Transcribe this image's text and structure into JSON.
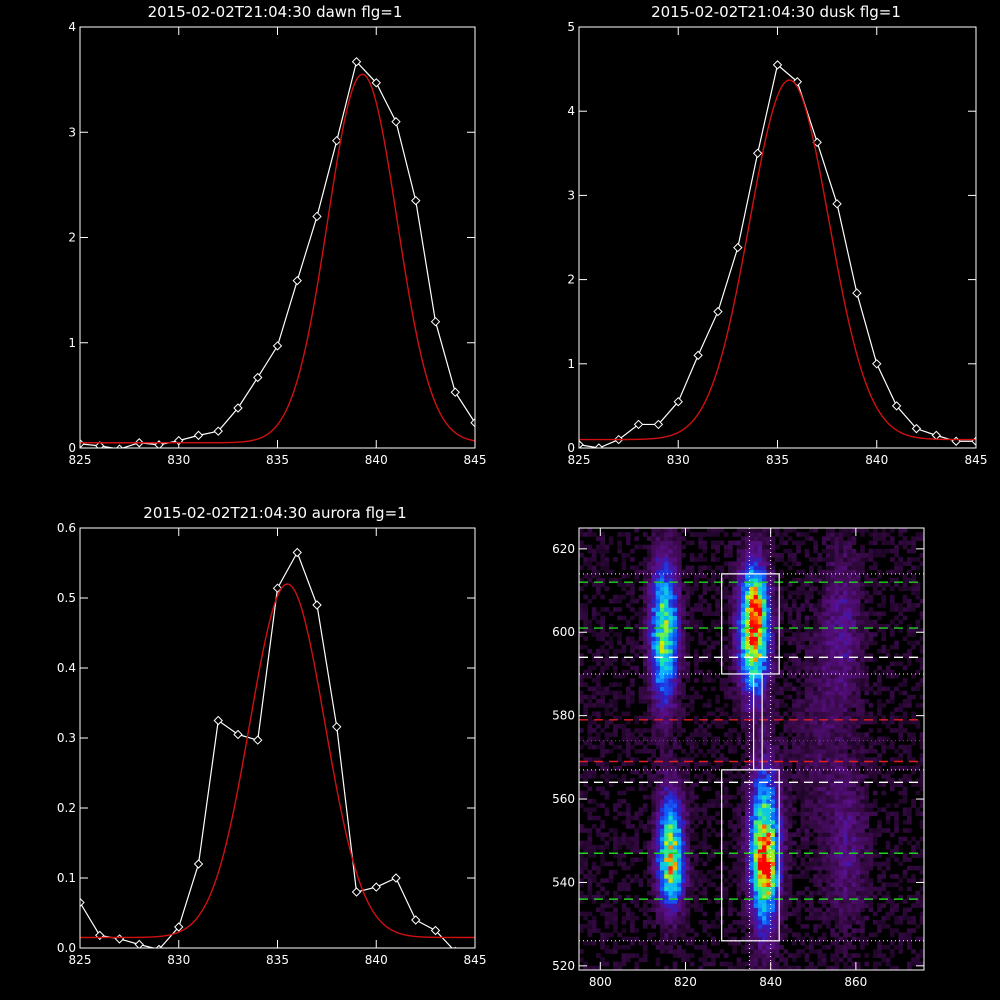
{
  "chart_data": [
    {
      "type": "line",
      "title": "2015-02-02T21:04:30 dawn flg=1",
      "xlim": [
        825,
        845
      ],
      "ylim": [
        0,
        4
      ],
      "xticks": [
        825,
        830,
        835,
        840,
        845
      ],
      "yticks": [
        0,
        1,
        2,
        3,
        4
      ],
      "xtick_labels": [
        "825",
        "830",
        "835",
        "840",
        "845"
      ],
      "ytick_labels": [
        "0",
        "1",
        "2",
        "3",
        "4"
      ],
      "grid": false,
      "series": [
        {
          "kind": "data",
          "color": "#ffffff",
          "marker": "diamond",
          "x": [
            825,
            826,
            827,
            828,
            829,
            830,
            831,
            832,
            833,
            834,
            835,
            836,
            837,
            838,
            839,
            840,
            841,
            842,
            843,
            844,
            845
          ],
          "y": [
            0.04,
            0.02,
            -0.01,
            0.05,
            0.03,
            0.07,
            0.12,
            0.16,
            0.38,
            0.67,
            0.97,
            1.59,
            2.2,
            2.92,
            3.67,
            3.47,
            3.1,
            2.35,
            1.2,
            0.53,
            0.24
          ]
        },
        {
          "kind": "fit",
          "color": "#d01010",
          "model": {
            "amplitude": 3.5,
            "center": 839.3,
            "sigma": 1.75,
            "offset": 0.05
          }
        }
      ]
    },
    {
      "type": "line",
      "title": "2015-02-02T21:04:30 dusk flg=1",
      "xlim": [
        825,
        845
      ],
      "ylim": [
        0,
        5
      ],
      "xticks": [
        825,
        830,
        835,
        840,
        845
      ],
      "yticks": [
        0,
        1,
        2,
        3,
        4,
        5
      ],
      "xtick_labels": [
        "825",
        "830",
        "835",
        "840",
        "845"
      ],
      "ytick_labels": [
        "0",
        "1",
        "2",
        "3",
        "4",
        "5"
      ],
      "grid": false,
      "series": [
        {
          "kind": "data",
          "color": "#ffffff",
          "marker": "diamond",
          "x": [
            825,
            826,
            827,
            828,
            829,
            830,
            831,
            832,
            833,
            834,
            835,
            836,
            837,
            838,
            839,
            840,
            841,
            842,
            843,
            844,
            845
          ],
          "y": [
            0.04,
            0.0,
            0.1,
            0.28,
            0.28,
            0.55,
            1.1,
            1.62,
            2.38,
            3.5,
            4.55,
            4.35,
            3.63,
            2.9,
            1.84,
            1.0,
            0.5,
            0.23,
            0.15,
            0.08,
            0.08
          ]
        },
        {
          "kind": "fit",
          "color": "#d01010",
          "model": {
            "amplitude": 4.27,
            "center": 835.6,
            "sigma": 2.0,
            "offset": 0.1
          }
        }
      ]
    },
    {
      "type": "line",
      "title": "2015-02-02T21:04:30 aurora flg=1",
      "xlim": [
        825,
        845
      ],
      "ylim": [
        0,
        0.6
      ],
      "xticks": [
        825,
        830,
        835,
        840,
        845
      ],
      "yticks": [
        0.0,
        0.1,
        0.2,
        0.3,
        0.4,
        0.5,
        0.6
      ],
      "xtick_labels": [
        "825",
        "830",
        "835",
        "840",
        "845"
      ],
      "ytick_labels": [
        "0.0",
        "0.1",
        "0.2",
        "0.3",
        "0.4",
        "0.5",
        "0.6"
      ],
      "grid": false,
      "series": [
        {
          "kind": "data",
          "color": "#ffffff",
          "marker": "diamond",
          "x": [
            825,
            826,
            827,
            828,
            829,
            830,
            831,
            832,
            833,
            834,
            835,
            836,
            837,
            838,
            839,
            840,
            841,
            842,
            843,
            844,
            845
          ],
          "y": [
            0.065,
            0.018,
            0.013,
            0.005,
            -0.002,
            0.03,
            0.12,
            0.325,
            0.305,
            0.297,
            0.514,
            0.565,
            0.49,
            0.316,
            0.08,
            0.087,
            0.1,
            0.04,
            0.025,
            -0.005,
            -0.005
          ]
        },
        {
          "kind": "fit",
          "color": "#d01010",
          "model": {
            "amplitude": 0.505,
            "center": 835.5,
            "sigma": 1.9,
            "offset": 0.015
          }
        }
      ]
    },
    {
      "type": "heatmap",
      "title": "",
      "xlim": [
        795,
        876
      ],
      "ylim": [
        519,
        625
      ],
      "xticks": [
        800,
        820,
        840,
        860
      ],
      "yticks": [
        520,
        540,
        560,
        580,
        600,
        620
      ],
      "xtick_labels": [
        "800",
        "820",
        "840",
        "860"
      ],
      "ytick_labels": [
        "520",
        "540",
        "560",
        "580",
        "600",
        "620"
      ],
      "colormap": [
        "#000000",
        "#3a0a4a",
        "#5a0f8a",
        "#2a20c8",
        "#1060ff",
        "#10b0ff",
        "#10e0c0",
        "#50f060",
        "#d0f000",
        "#ff8000",
        "#ff0000"
      ],
      "blobs": [
        {
          "x": 815.0,
          "y": 600,
          "sx": 2.1,
          "sy": 11,
          "amp": 0.7
        },
        {
          "x": 816.5,
          "y": 548,
          "sx": 2.1,
          "sy": 9,
          "amp": 0.65
        },
        {
          "x": 817.0,
          "y": 542,
          "sx": 1.6,
          "sy": 4,
          "amp": 0.22
        },
        {
          "x": 836.0,
          "y": 601,
          "sx": 2.3,
          "sy": 10,
          "amp": 0.92
        },
        {
          "x": 837.0,
          "y": 608,
          "sx": 1.3,
          "sy": 3,
          "amp": 0.3
        },
        {
          "x": 838.5,
          "y": 548,
          "sx": 2.3,
          "sy": 12,
          "amp": 0.82
        },
        {
          "x": 839.0,
          "y": 543,
          "sx": 1.5,
          "sy": 4,
          "amp": 0.35
        },
        {
          "x": 857.0,
          "y": 602,
          "sx": 3.0,
          "sy": 12,
          "amp": 0.15
        },
        {
          "x": 858.0,
          "y": 548,
          "sx": 3.0,
          "sy": 12,
          "amp": 0.13
        },
        {
          "x": 852.0,
          "y": 575,
          "sx": 5.0,
          "sy": 20,
          "amp": 0.07
        }
      ],
      "boxes": [
        {
          "x0": 828.5,
          "x1": 842.0,
          "y0": 590,
          "y1": 614,
          "color": "#ffffff"
        },
        {
          "x0": 828.5,
          "x1": 842.0,
          "y0": 526,
          "y1": 567,
          "color": "#ffffff"
        }
      ],
      "connectors": [
        {
          "x": 836.0,
          "y0": 567,
          "y1": 590,
          "color": "#ffffff"
        },
        {
          "x": 838.0,
          "y0": 567,
          "y1": 590,
          "color": "#ffffff"
        }
      ],
      "vlines": [
        {
          "x": 835.0,
          "style": "dotted",
          "color": "#ffffff"
        },
        {
          "x": 840.0,
          "style": "dotted",
          "color": "#ffffff"
        }
      ],
      "hlines": [
        {
          "y": 612,
          "style": "dashed",
          "color": "#20d020"
        },
        {
          "y": 601,
          "style": "dashed",
          "color": "#20d020"
        },
        {
          "y": 547,
          "style": "dashed",
          "color": "#20d020"
        },
        {
          "y": 536,
          "style": "dashed",
          "color": "#20d020"
        },
        {
          "y": 594,
          "style": "dashed",
          "color": "#ffffff"
        },
        {
          "y": 564,
          "style": "dashed",
          "color": "#ffffff"
        },
        {
          "y": 614,
          "style": "dotted",
          "color": "#ffffff"
        },
        {
          "y": 590,
          "style": "dotted",
          "color": "#ffffff"
        },
        {
          "y": 567,
          "style": "dotted",
          "color": "#ffffff"
        },
        {
          "y": 526,
          "style": "dotted",
          "color": "#ffffff"
        },
        {
          "y": 579,
          "style": "dashed",
          "color": "#e02020"
        },
        {
          "y": 569,
          "style": "dashed",
          "color": "#e02020"
        },
        {
          "y": 574,
          "style": "dotted",
          "color": "#e02020"
        }
      ]
    }
  ]
}
